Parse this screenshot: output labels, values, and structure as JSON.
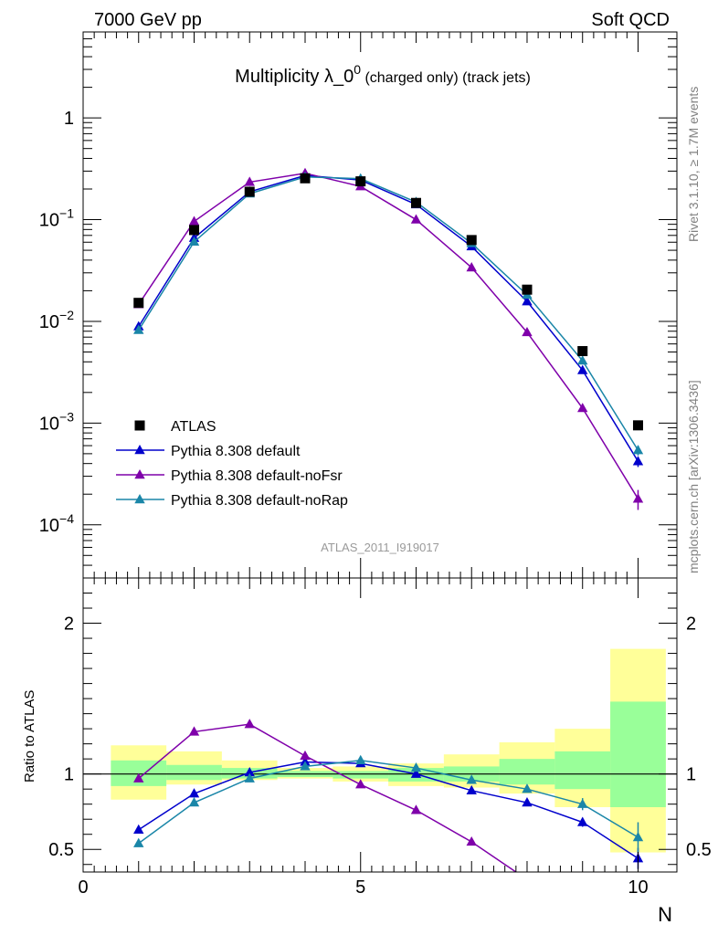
{
  "header": {
    "energy_label": "7000 GeV pp",
    "category_label": "Soft QCD"
  },
  "side_labels": {
    "rivet": "Rivet 3.1.10, ≥ 1.7M events",
    "source": "mcplots.cern.ch [arXiv:1306.3436]"
  },
  "chart_data": {
    "type": "line",
    "title": "Multiplicity λ_0",
    "title_superscript": "0",
    "title_suffix": " (charged only) (track jets)",
    "analysis_label": "ATLAS_2011_I919017",
    "xlabel": "N",
    "xlim": [
      0,
      10.7
    ],
    "main_panel": {
      "yscale": "log",
      "ylim": [
        3e-05,
        7
      ],
      "yticks": [
        {
          "label_base": "10",
          "label_exp": "−4",
          "value": 0.0001
        },
        {
          "label_base": "10",
          "label_exp": "−3",
          "value": 0.001
        },
        {
          "label_base": "10",
          "label_exp": "−2",
          "value": 0.01
        },
        {
          "label_base": "10",
          "label_exp": "−1",
          "value": 0.1
        },
        {
          "label_base": "1",
          "label_exp": "",
          "value": 1
        }
      ],
      "data": {
        "name": "ATLAS",
        "color": "#000000",
        "marker": "square",
        "x": [
          1,
          2,
          3,
          4,
          5,
          6,
          7,
          8,
          9,
          10
        ],
        "y": [
          0.0152,
          0.079,
          0.188,
          0.255,
          0.238,
          0.146,
          0.063,
          0.0205,
          0.0051,
          0.00095
        ]
      },
      "series": [
        {
          "name": "Pythia 8.308 default",
          "color": "#0000cc",
          "x": [
            1,
            2,
            3,
            4,
            5,
            6,
            7,
            8,
            9,
            10
          ],
          "y": [
            0.0089,
            0.066,
            0.188,
            0.272,
            0.245,
            0.141,
            0.0545,
            0.0157,
            0.0033,
            0.00042
          ],
          "yerr": [
            0,
            0,
            0,
            0,
            0,
            0,
            0,
            0,
            0.00015,
            5e-05
          ]
        },
        {
          "name": "Pythia 8.308 default-noFsr",
          "color": "#7f00aa",
          "x": [
            1,
            2,
            3,
            4,
            5,
            6,
            7,
            8,
            9,
            10
          ],
          "y": [
            0.0147,
            0.096,
            0.234,
            0.286,
            0.212,
            0.1,
            0.0338,
            0.0078,
            0.0014,
            0.00018
          ],
          "yerr": [
            0,
            0,
            0,
            0,
            0,
            0,
            0,
            0,
            6e-05,
            4e-05
          ]
        },
        {
          "name": "Pythia 8.308 default-noRap",
          "color": "#1a86a8",
          "x": [
            1,
            2,
            3,
            4,
            5,
            6,
            7,
            8,
            9,
            10
          ],
          "y": [
            0.0082,
            0.0605,
            0.18,
            0.263,
            0.253,
            0.149,
            0.0585,
            0.0182,
            0.0041,
            0.00054
          ],
          "yerr": [
            0,
            0,
            0,
            0,
            0,
            0,
            0,
            0,
            0.0002,
            6e-05
          ]
        }
      ]
    },
    "ratio_panel": {
      "ylabel": "Ratio to ATLAS",
      "ylim": [
        0.35,
        2.3
      ],
      "yticks": [
        {
          "label": "0.5",
          "value": 0.5
        },
        {
          "label": "1",
          "value": 1
        },
        {
          "label": "2",
          "value": 2
        }
      ],
      "bands": [
        {
          "xlo": 0.5,
          "xhi": 1.5,
          "stat": [
            0.92,
            1.09
          ],
          "total": [
            0.83,
            1.19
          ]
        },
        {
          "xlo": 1.5,
          "xhi": 2.5,
          "stat": [
            0.96,
            1.06
          ],
          "total": [
            0.93,
            1.15
          ]
        },
        {
          "xlo": 2.5,
          "xhi": 3.5,
          "stat": [
            0.97,
            1.04
          ],
          "total": [
            0.96,
            1.09
          ]
        },
        {
          "xlo": 3.5,
          "xhi": 4.5,
          "stat": [
            0.98,
            1.02
          ],
          "total": [
            0.97,
            1.04
          ]
        },
        {
          "xlo": 4.5,
          "xhi": 5.5,
          "stat": [
            0.97,
            1.02
          ],
          "total": [
            0.95,
            1.05
          ]
        },
        {
          "xlo": 5.5,
          "xhi": 6.5,
          "stat": [
            0.95,
            1.04
          ],
          "total": [
            0.92,
            1.07
          ]
        },
        {
          "xlo": 6.5,
          "xhi": 7.5,
          "stat": [
            0.95,
            1.05
          ],
          "total": [
            0.91,
            1.13
          ]
        },
        {
          "xlo": 7.5,
          "xhi": 8.5,
          "stat": [
            0.93,
            1.1
          ],
          "total": [
            0.87,
            1.21
          ]
        },
        {
          "xlo": 8.5,
          "xhi": 9.5,
          "stat": [
            0.9,
            1.15
          ],
          "total": [
            0.78,
            1.3
          ]
        },
        {
          "xlo": 9.5,
          "xhi": 10.5,
          "stat": [
            0.78,
            1.48
          ],
          "total": [
            0.48,
            1.83
          ]
        }
      ],
      "series": [
        {
          "name": "Pythia 8.308 default",
          "color": "#0000cc",
          "x": [
            1,
            2,
            3,
            4,
            5,
            6,
            7,
            8,
            9,
            10
          ],
          "y": [
            0.63,
            0.87,
            1.01,
            1.08,
            1.07,
            1.0,
            0.89,
            0.81,
            0.68,
            0.44
          ],
          "yerr": [
            0.02,
            0.01,
            0.01,
            0.01,
            0.01,
            0.01,
            0.01,
            0.015,
            0.03,
            0.07
          ]
        },
        {
          "name": "Pythia 8.308 default-noFsr",
          "color": "#7f00aa",
          "x": [
            1,
            2,
            3,
            4,
            5,
            6,
            7,
            8
          ],
          "y": [
            0.97,
            1.28,
            1.33,
            1.12,
            0.93,
            0.76,
            0.55,
            0.3
          ],
          "yerr": [
            0,
            0,
            0,
            0,
            0,
            0,
            0,
            0
          ]
        },
        {
          "name": "Pythia 8.308 default-noRap",
          "color": "#1a86a8",
          "x": [
            1,
            2,
            3,
            4,
            5,
            6,
            7,
            8,
            9,
            10
          ],
          "y": [
            0.54,
            0.81,
            0.97,
            1.05,
            1.09,
            1.04,
            0.96,
            0.9,
            0.8,
            0.58
          ],
          "yerr": [
            0.02,
            0.01,
            0.01,
            0.01,
            0.01,
            0.01,
            0.01,
            0.015,
            0.04,
            0.1
          ]
        }
      ]
    },
    "legend_position": "bottom-left"
  }
}
